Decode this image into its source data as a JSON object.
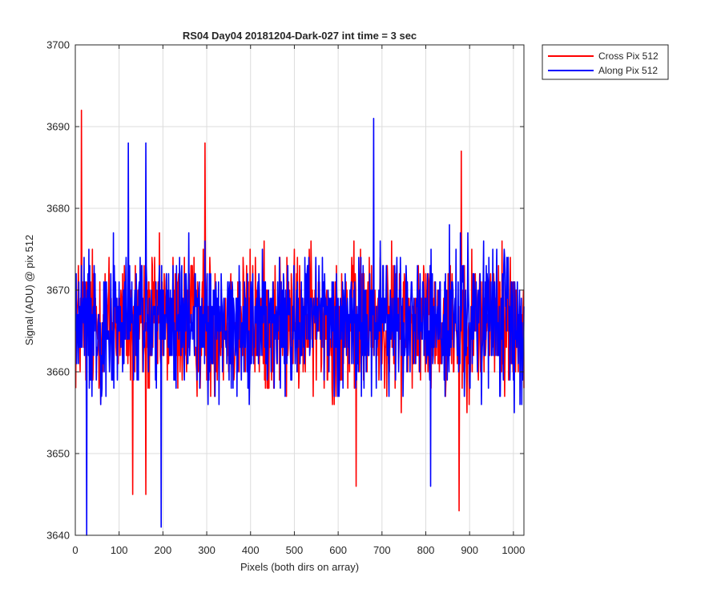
{
  "chart_data": {
    "type": "line",
    "title": "RS04 Day04 20181204-Dark-027 int time = 3 sec",
    "xlabel": "Pixels (both dirs on array)",
    "ylabel": "Signal (ADU) @ pix 512",
    "xlim": [
      0,
      1024
    ],
    "ylim": [
      3640,
      3700
    ],
    "xticks": [
      0,
      100,
      200,
      300,
      400,
      500,
      600,
      700,
      800,
      900,
      1000
    ],
    "yticks": [
      3640,
      3650,
      3660,
      3670,
      3680,
      3690,
      3700
    ],
    "grid": true,
    "legend_position": "outside-top-right",
    "n_points": 1024,
    "series": [
      {
        "name": "Cross Pix 512",
        "color": "#ff0000",
        "mean": 3666,
        "noise_half_range": 8,
        "seed": 12345,
        "extremes": [
          {
            "x": 13,
            "y": 3692
          },
          {
            "x": 130,
            "y": 3645
          },
          {
            "x": 160,
            "y": 3645
          },
          {
            "x": 295,
            "y": 3688
          },
          {
            "x": 640,
            "y": 3646
          },
          {
            "x": 875,
            "y": 3643
          },
          {
            "x": 880,
            "y": 3687
          }
        ]
      },
      {
        "name": "Along Pix 512",
        "color": "#0000ff",
        "mean": 3666,
        "noise_half_range": 8,
        "seed": 67890,
        "extremes": [
          {
            "x": 25,
            "y": 3640
          },
          {
            "x": 120,
            "y": 3688
          },
          {
            "x": 160,
            "y": 3688
          },
          {
            "x": 195,
            "y": 3641
          },
          {
            "x": 680,
            "y": 3691
          },
          {
            "x": 810,
            "y": 3646
          }
        ]
      }
    ]
  }
}
